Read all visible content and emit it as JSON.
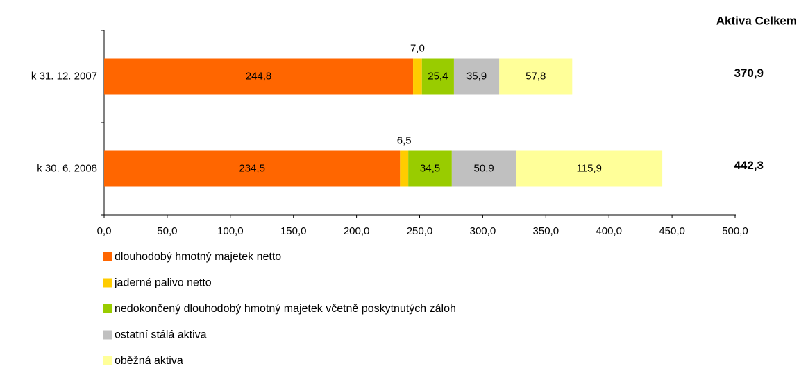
{
  "chart_data": {
    "type": "stacked-barh",
    "categories": [
      "k 31. 12. 2007",
      "k 30. 6. 2008"
    ],
    "series": [
      {
        "name": "dlouhodobý hmotný majetek netto",
        "color": "#ff6600",
        "values": [
          244.8,
          234.5
        ],
        "value_labels": [
          "244,8",
          "234,5"
        ]
      },
      {
        "name": "jaderné palivo netto",
        "color": "#ffcc00",
        "values": [
          7.0,
          6.5
        ],
        "value_labels": [
          "7,0",
          "6,5"
        ]
      },
      {
        "name": "nedokončený dlouhodobý hmotný majetek včetně poskytnutých záloh",
        "color": "#99cc00",
        "values": [
          25.4,
          34.5
        ],
        "value_labels": [
          "25,4",
          "34,5"
        ]
      },
      {
        "name": "ostatní stálá aktiva",
        "color": "#c0c0c0",
        "values": [
          35.9,
          50.9
        ],
        "value_labels": [
          "35,9",
          "50,9"
        ]
      },
      {
        "name": "oběžná aktiva",
        "color": "#ffff99",
        "values": [
          57.8,
          115.9
        ],
        "value_labels": [
          "57,8",
          "115,9"
        ]
      }
    ],
    "totals": {
      "title": "Aktiva Celkem",
      "values": [
        370.9,
        442.3
      ],
      "value_labels": [
        "370,9",
        "442,3"
      ]
    },
    "xlim": [
      0,
      500
    ],
    "xticks": [
      {
        "value": 0,
        "label": "0,0"
      },
      {
        "value": 50,
        "label": "50,0"
      },
      {
        "value": 100,
        "label": "100,0"
      },
      {
        "value": 150,
        "label": "150,0"
      },
      {
        "value": 200,
        "label": "200,0"
      },
      {
        "value": 250,
        "label": "250,0"
      },
      {
        "value": 300,
        "label": "300,0"
      },
      {
        "value": 350,
        "label": "350,0"
      },
      {
        "value": 400,
        "label": "400,0"
      },
      {
        "value": 450,
        "label": "450,0"
      },
      {
        "value": 500,
        "label": "500,0"
      }
    ],
    "legend": "bottom-left"
  }
}
